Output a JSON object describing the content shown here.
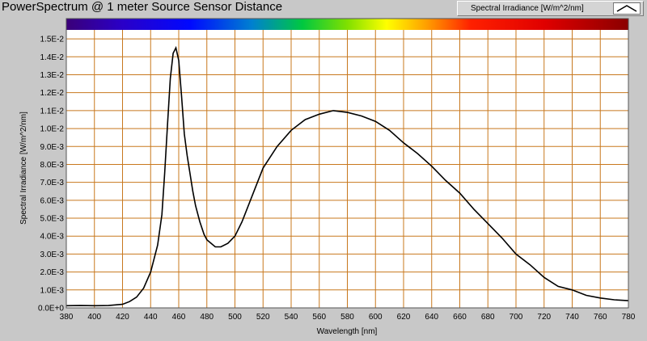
{
  "window": {
    "title": "PowerSpectrum @ 1 meter Source Sensor Distance"
  },
  "legend": {
    "label": "Spectral Irradiance [W/m^2/nm]",
    "line_color": "#000000"
  },
  "colors": {
    "plot_background": "#ffffff",
    "grid": "#c8781e",
    "frame_background": "#c8c8c8",
    "curve": "#000000"
  },
  "chart_data": {
    "type": "line",
    "title": "PowerSpectrum @ 1 meter Source Sensor Distance",
    "xlabel": "Wavelength [nm]",
    "ylabel": "Spectral Irradiance [W/m^2/nm]",
    "xlim": [
      380,
      780
    ],
    "ylim": [
      0,
      0.0155
    ],
    "grid": true,
    "legend_position": "top-right",
    "color_spectrum_bar": true,
    "x_ticks": [
      "380",
      "400",
      "420",
      "440",
      "460",
      "480",
      "500",
      "520",
      "540",
      "560",
      "580",
      "600",
      "620",
      "640",
      "660",
      "680",
      "700",
      "720",
      "740",
      "760",
      "780"
    ],
    "y_ticks": [
      "0.0E+0",
      "1.0E-3",
      "2.0E-3",
      "3.0E-3",
      "4.0E-3",
      "5.0E-3",
      "6.0E-3",
      "7.0E-3",
      "8.0E-3",
      "9.0E-3",
      "1.0E-2",
      "1.1E-2",
      "1.2E-2",
      "1.3E-2",
      "1.4E-2",
      "1.5E-2"
    ],
    "y_tick_values": [
      0,
      0.001,
      0.002,
      0.003,
      0.004,
      0.005,
      0.006,
      0.007,
      0.008,
      0.009,
      0.01,
      0.011,
      0.012,
      0.013,
      0.014,
      0.015
    ],
    "series": [
      {
        "name": "Spectral Irradiance [W/m^2/nm]",
        "x": [
          380,
          390,
          400,
          410,
          420,
          425,
          430,
          435,
          440,
          445,
          448,
          450,
          452,
          454,
          456,
          458,
          460,
          462,
          464,
          466,
          468,
          470,
          472,
          475,
          478,
          480,
          483,
          486,
          490,
          495,
          500,
          505,
          510,
          515,
          520,
          530,
          540,
          550,
          560,
          570,
          580,
          590,
          600,
          610,
          620,
          630,
          640,
          650,
          660,
          670,
          680,
          690,
          700,
          710,
          720,
          730,
          740,
          750,
          760,
          770,
          780
        ],
        "y": [
          0.00012,
          0.00013,
          0.00012,
          0.00013,
          0.0002,
          0.00035,
          0.0006,
          0.0011,
          0.002,
          0.0035,
          0.0052,
          0.0075,
          0.0102,
          0.0128,
          0.0142,
          0.0145,
          0.0138,
          0.0118,
          0.0097,
          0.0085,
          0.0075,
          0.0065,
          0.0057,
          0.0048,
          0.0041,
          0.0038,
          0.0036,
          0.0034,
          0.0034,
          0.0036,
          0.004,
          0.0048,
          0.0058,
          0.0068,
          0.0078,
          0.009,
          0.0099,
          0.0105,
          0.0108,
          0.011,
          0.0109,
          0.0107,
          0.0104,
          0.0099,
          0.0092,
          0.0086,
          0.0079,
          0.0071,
          0.0064,
          0.0055,
          0.0047,
          0.0039,
          0.003,
          0.0024,
          0.0017,
          0.0012,
          0.001,
          0.0007,
          0.00055,
          0.00045,
          0.0004
        ]
      }
    ]
  }
}
